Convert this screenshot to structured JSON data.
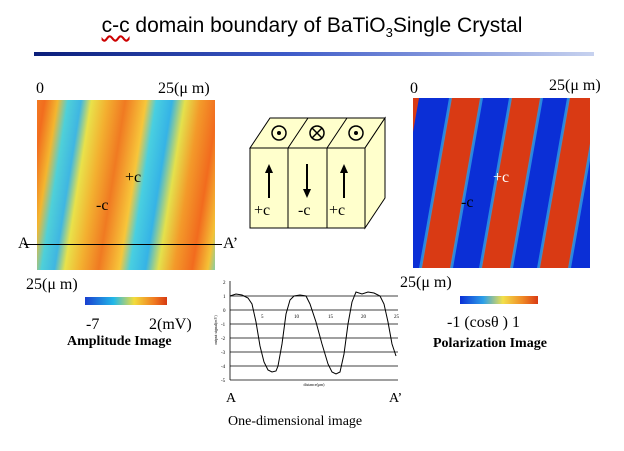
{
  "title": {
    "prefix": "c-c",
    "main": " domain boundary of BaTiO",
    "sub": "3",
    "suffix": "Single Crystal"
  },
  "amplitude_panel": {
    "axis_start": "0",
    "axis_end_top": "25(μ m)",
    "axis_end_bottom": "25(μ m)",
    "domain_plus": "+c",
    "domain_minus": "-c",
    "line_start": "A",
    "line_end": "A’",
    "scale_min": "-7",
    "scale_max": "2(mV)",
    "caption": "Amplitude Image",
    "colors": [
      "#1a3fd0",
      "#23b8e8",
      "#f2dc3c",
      "#f07820",
      "#d63a12"
    ]
  },
  "polarization_panel": {
    "axis_start": "0",
    "axis_end_top": "25(μ m)",
    "axis_end_bottom": "25(μ m)",
    "domain_plus": "+c",
    "domain_minus": "-c",
    "scale_label": "-1 (cosθ ) 1",
    "caption": "Polarization Image",
    "colors": [
      "#0b2fd6",
      "#d93a14"
    ]
  },
  "crystal_model": {
    "top_symbols": [
      "dot-circle-icon",
      "cross-circle-icon",
      "dot-circle-icon"
    ],
    "labels": [
      "+c",
      "-c",
      "+c"
    ],
    "arrows": [
      "up",
      "down",
      "up"
    ]
  },
  "profile_plot": {
    "start_label": "A",
    "end_label": "A’",
    "caption": "One-dimensional image",
    "y_ticks": [
      "2",
      "1",
      "0",
      "-1",
      "-2",
      "-3",
      "-4",
      "-5"
    ],
    "x_ticks": [
      "5",
      "10",
      "15",
      "20",
      "25"
    ],
    "ylabel": "output signal(mV)",
    "xlabel": "distance(μm)"
  }
}
